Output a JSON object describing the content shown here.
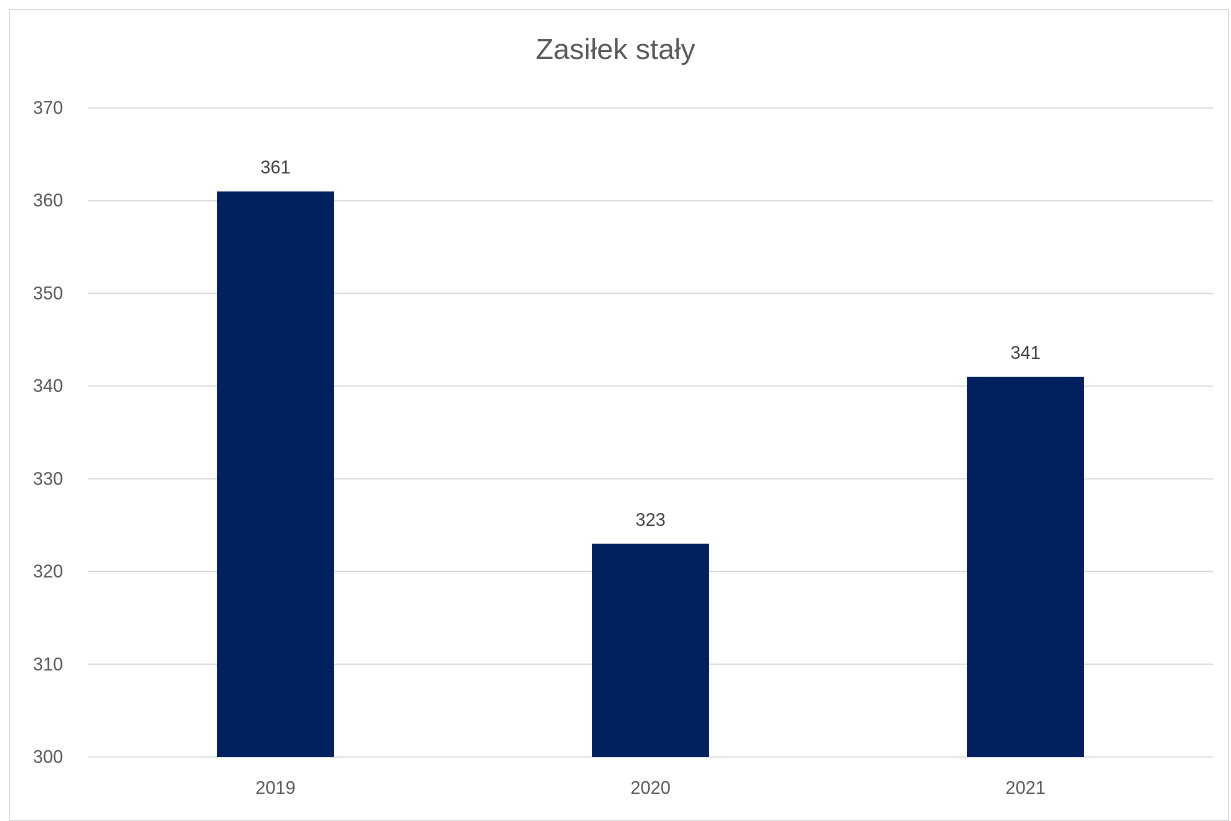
{
  "chart_data": {
    "type": "bar",
    "title": "Zasiłek stały",
    "categories": [
      "2019",
      "2020",
      "2021"
    ],
    "values": [
      361,
      323,
      341
    ],
    "data_labels": [
      "361",
      "323",
      "341"
    ],
    "ylim": [
      300,
      370
    ],
    "y_ticks": [
      "300",
      "310",
      "320",
      "330",
      "340",
      "350",
      "360",
      "370"
    ],
    "xlabel": "",
    "ylabel": "",
    "grid": true,
    "legend": "none",
    "bar_color": "#002060",
    "grid_color": "#d9d9d9"
  }
}
